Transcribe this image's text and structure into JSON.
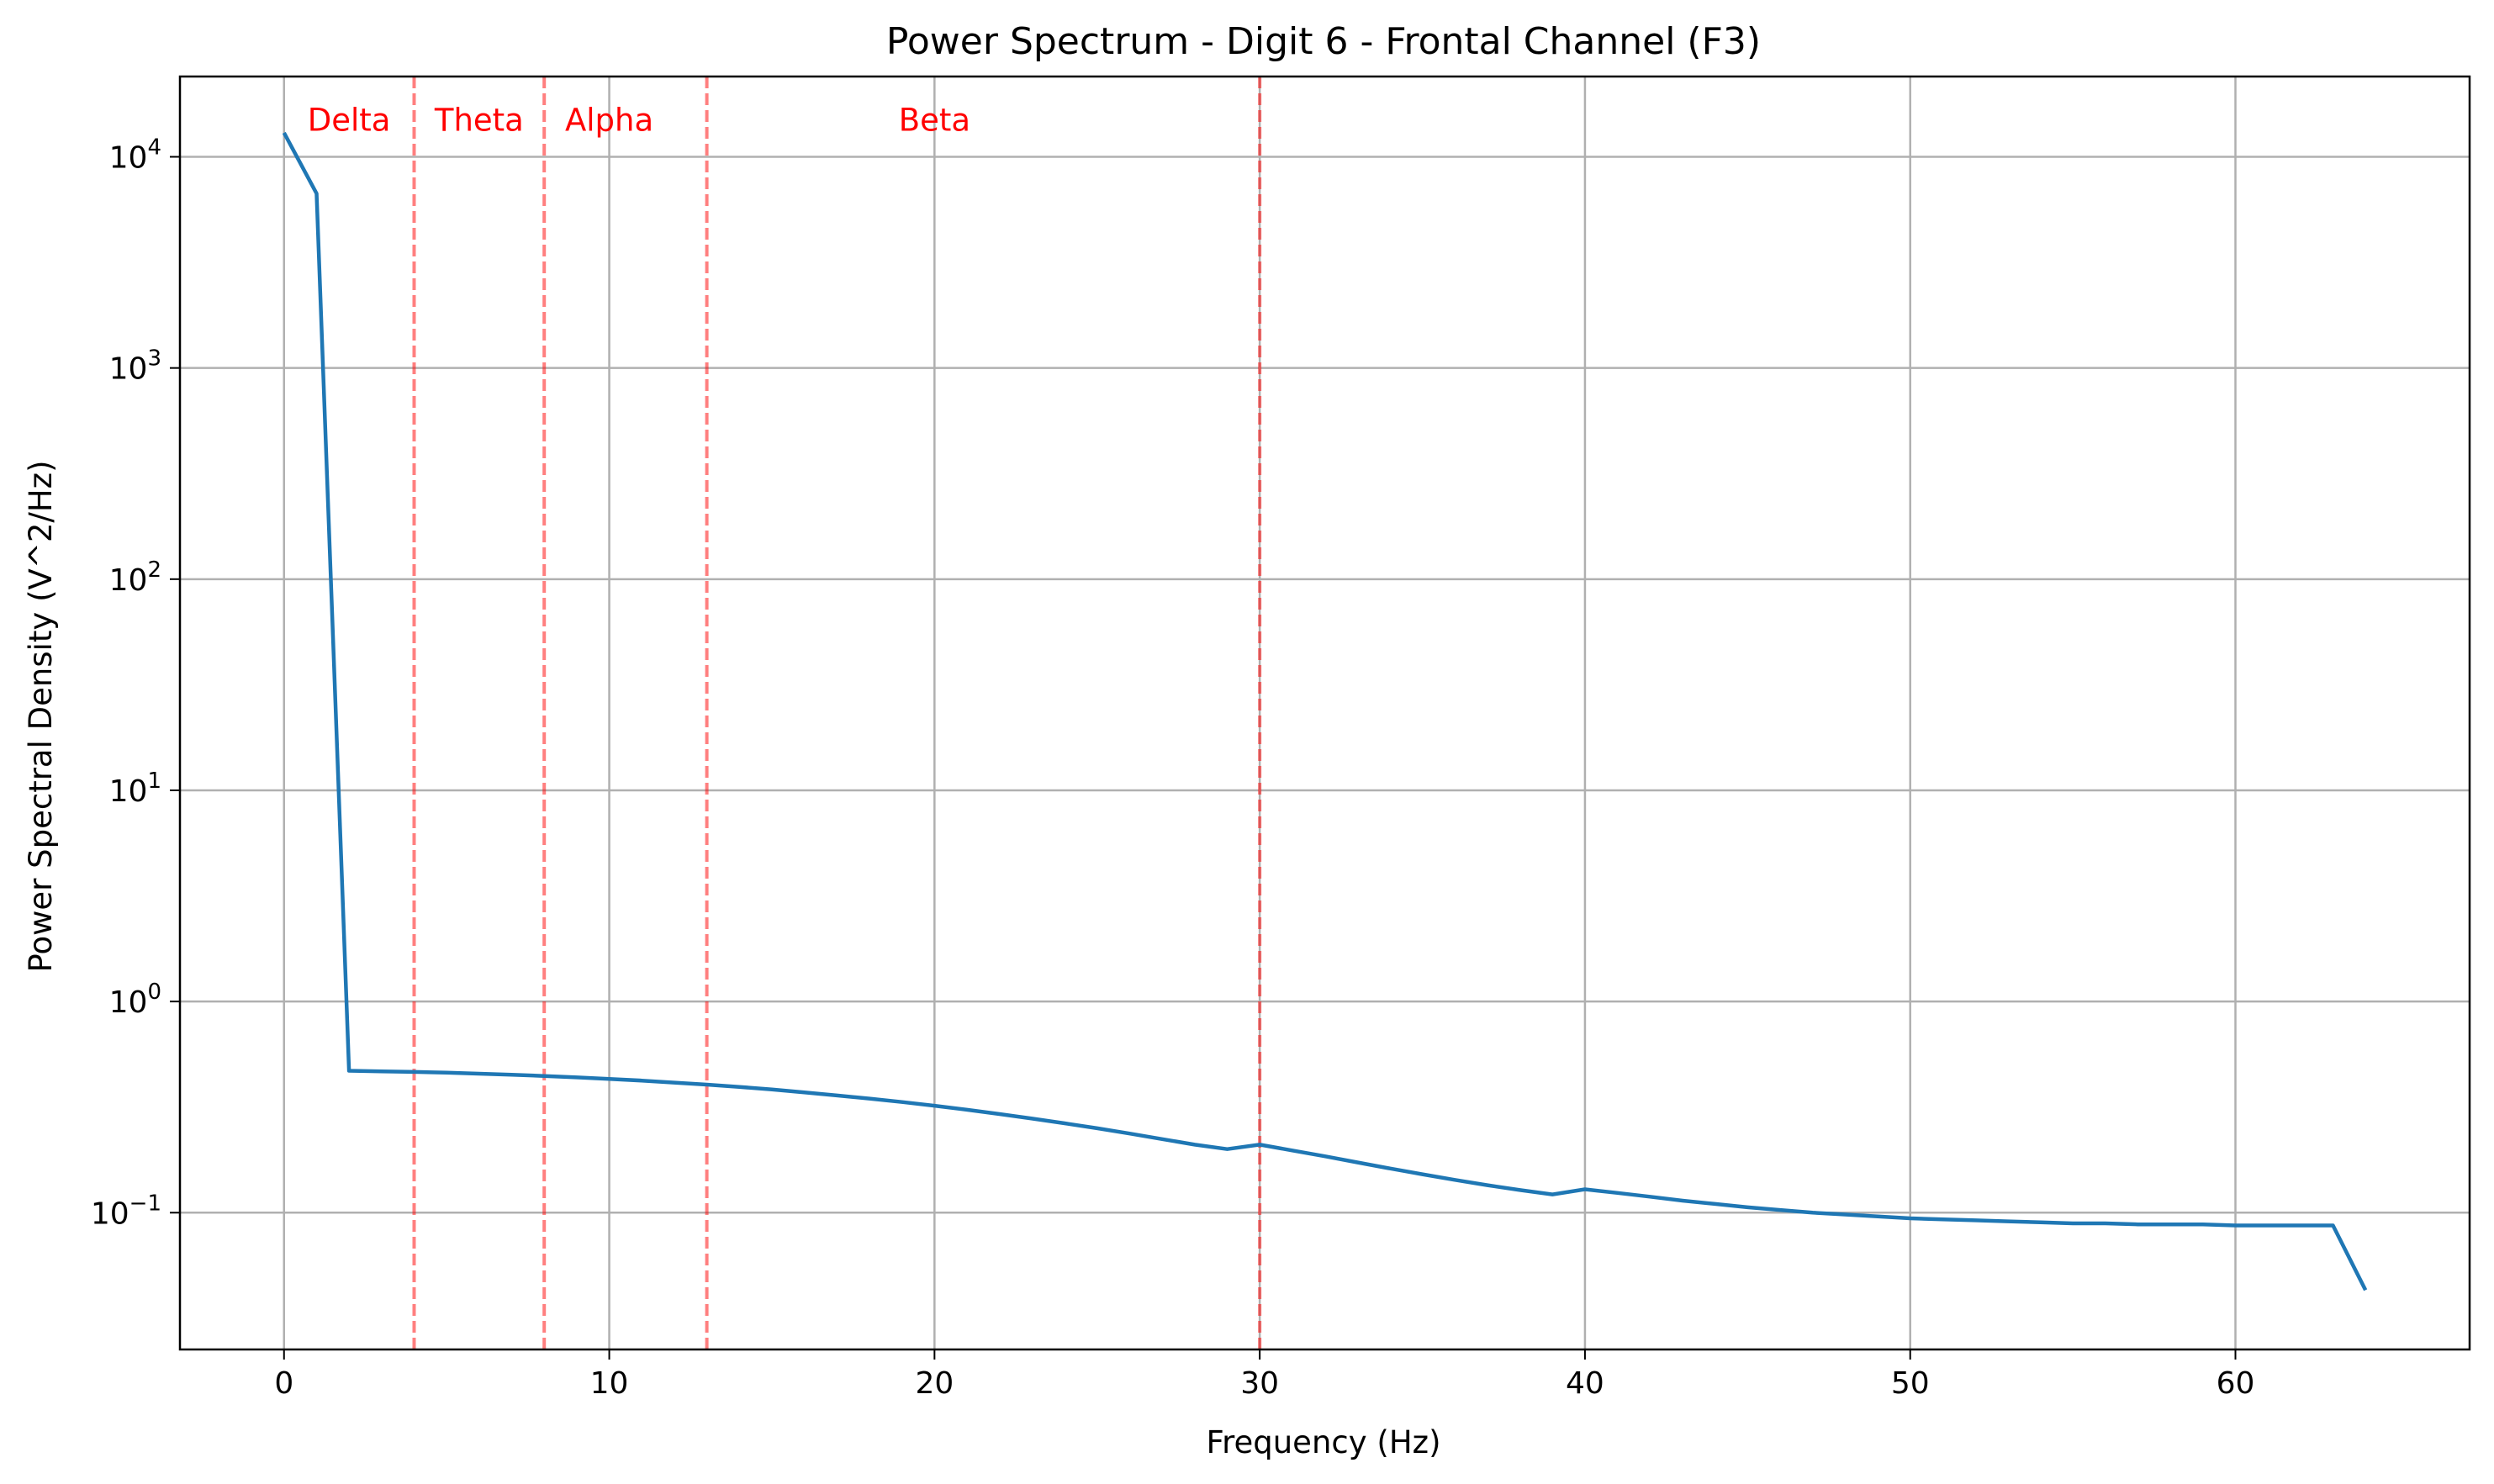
{
  "chart_data": {
    "type": "line",
    "title": "Power Spectrum - Digit 6 - Frontal Channel (F3)",
    "xlabel": "Frequency (Hz)",
    "ylabel": "Power Spectral Density (V^2/Hz)",
    "xlim": [
      -3.2,
      67.2
    ],
    "ylim": [
      0.0225,
      24000
    ],
    "yscale": "log",
    "grid": true,
    "x_ticks": [
      0,
      10,
      20,
      30,
      40,
      50,
      60
    ],
    "y_ticks": [
      {
        "value": 0.1,
        "base": "10",
        "exp": "−1"
      },
      {
        "value": 1,
        "base": "10",
        "exp": "0"
      },
      {
        "value": 10,
        "base": "10",
        "exp": "1"
      },
      {
        "value": 100,
        "base": "10",
        "exp": "2"
      },
      {
        "value": 1000,
        "base": "10",
        "exp": "3"
      },
      {
        "value": 10000,
        "base": "10",
        "exp": "4"
      }
    ],
    "series": [
      {
        "color": "#1f77b4",
        "x": [
          0,
          1,
          2,
          3,
          4,
          5,
          6,
          7,
          8,
          9,
          10,
          11,
          12,
          13,
          14,
          15,
          16,
          17,
          18,
          19,
          20,
          21,
          22,
          23,
          24,
          25,
          26,
          27,
          28,
          29,
          30,
          31,
          32,
          33,
          34,
          35,
          36,
          37,
          38,
          39,
          40,
          41,
          42,
          43,
          44,
          45,
          46,
          47,
          48,
          49,
          50,
          51,
          52,
          53,
          54,
          55,
          56,
          57,
          58,
          59,
          60,
          61,
          62,
          63,
          64
        ],
        "y": [
          13000,
          6700,
          0.47,
          0.467,
          0.464,
          0.46,
          0.455,
          0.45,
          0.444,
          0.437,
          0.43,
          0.422,
          0.413,
          0.404,
          0.394,
          0.383,
          0.371,
          0.359,
          0.347,
          0.334,
          0.321,
          0.307,
          0.293,
          0.279,
          0.265,
          0.251,
          0.237,
          0.223,
          0.21,
          0.2,
          0.21,
          0.197,
          0.185,
          0.173,
          0.162,
          0.152,
          0.143,
          0.135,
          0.128,
          0.122,
          0.129,
          0.124,
          0.119,
          0.114,
          0.11,
          0.106,
          0.103,
          0.1,
          0.098,
          0.096,
          0.094,
          0.093,
          0.092,
          0.091,
          0.09,
          0.089,
          0.089,
          0.088,
          0.088,
          0.088,
          0.087,
          0.087,
          0.087,
          0.087,
          0.043
        ]
      }
    ],
    "band_lines": {
      "color": "#ff0000",
      "x": [
        4,
        8,
        13,
        30
      ]
    },
    "band_labels": [
      {
        "text": "Delta",
        "x": 2
      },
      {
        "text": "Theta",
        "x": 6
      },
      {
        "text": "Alpha",
        "x": 10
      },
      {
        "text": "Beta",
        "x": 20
      }
    ],
    "band_label_y": 15000
  }
}
